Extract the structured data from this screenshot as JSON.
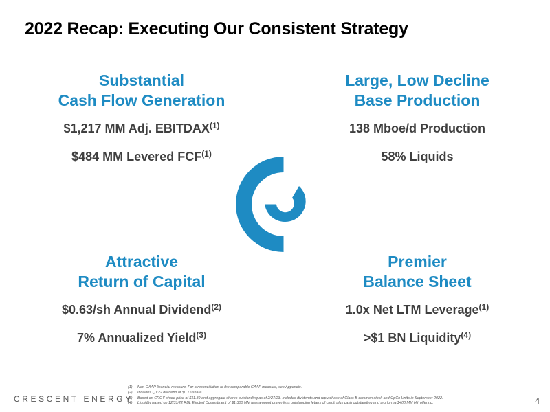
{
  "slide": {
    "title": "2022 Recap: Executing Our Consistent Strategy",
    "page_number": "4",
    "brand": "CRESCENT ENERGY"
  },
  "quadrants": {
    "top_left": {
      "heading_line1": "Substantial",
      "heading_line2": "Cash Flow Generation",
      "line1": "$1,217 MM Adj. EBITDAX",
      "line1_sup": "(1)",
      "line2": "$484 MM Levered FCF",
      "line2_sup": "(1)"
    },
    "top_right": {
      "heading_line1": "Large, Low Decline",
      "heading_line2": "Base Production",
      "line1": "138 Mboe/d Production",
      "line1_sup": "",
      "line2": "58% Liquids",
      "line2_sup": ""
    },
    "bottom_left": {
      "heading_line1": "Attractive",
      "heading_line2": "Return of Capital",
      "line1": "$0.63/sh Annual Dividend",
      "line1_sup": "(2)",
      "line2": "7% Annualized Yield",
      "line2_sup": "(3)"
    },
    "bottom_right": {
      "heading_line1": "Premier",
      "heading_line2": "Balance Sheet",
      "line1": "1.0x Net LTM Leverage",
      "line1_sup": "(1)",
      "line2": ">$1 BN Liquidity",
      "line2_sup": "(4)"
    }
  },
  "footnotes": [
    {
      "num": "(1)",
      "text": "Non-GAAP financial measure. For a reconciliation to the comparable GAAP measure, see Appendix."
    },
    {
      "num": "(2)",
      "text": "Includes Q1'22 dividend of $0.12/share."
    },
    {
      "num": "(3)",
      "text": "Based on CRGY share price of $11.89 and aggregate shares outstanding as of 2/27/23. Includes dividends and repurchase of Class B common stock and OpCo Units in September 2022."
    },
    {
      "num": "(4)",
      "text": "Liquidity based on 12/31/22 RBL Elected Commitment of $1,300 MM less amount drawn less outstanding letters of credit plus cash outstanding and pro forma $400 MM HY offering."
    }
  ],
  "colors": {
    "accent": "#1e8bc3",
    "body_text": "#3f3f3f",
    "title_text": "#000000"
  },
  "icons": {
    "center_logo": "crescent-energy-logo-icon"
  }
}
